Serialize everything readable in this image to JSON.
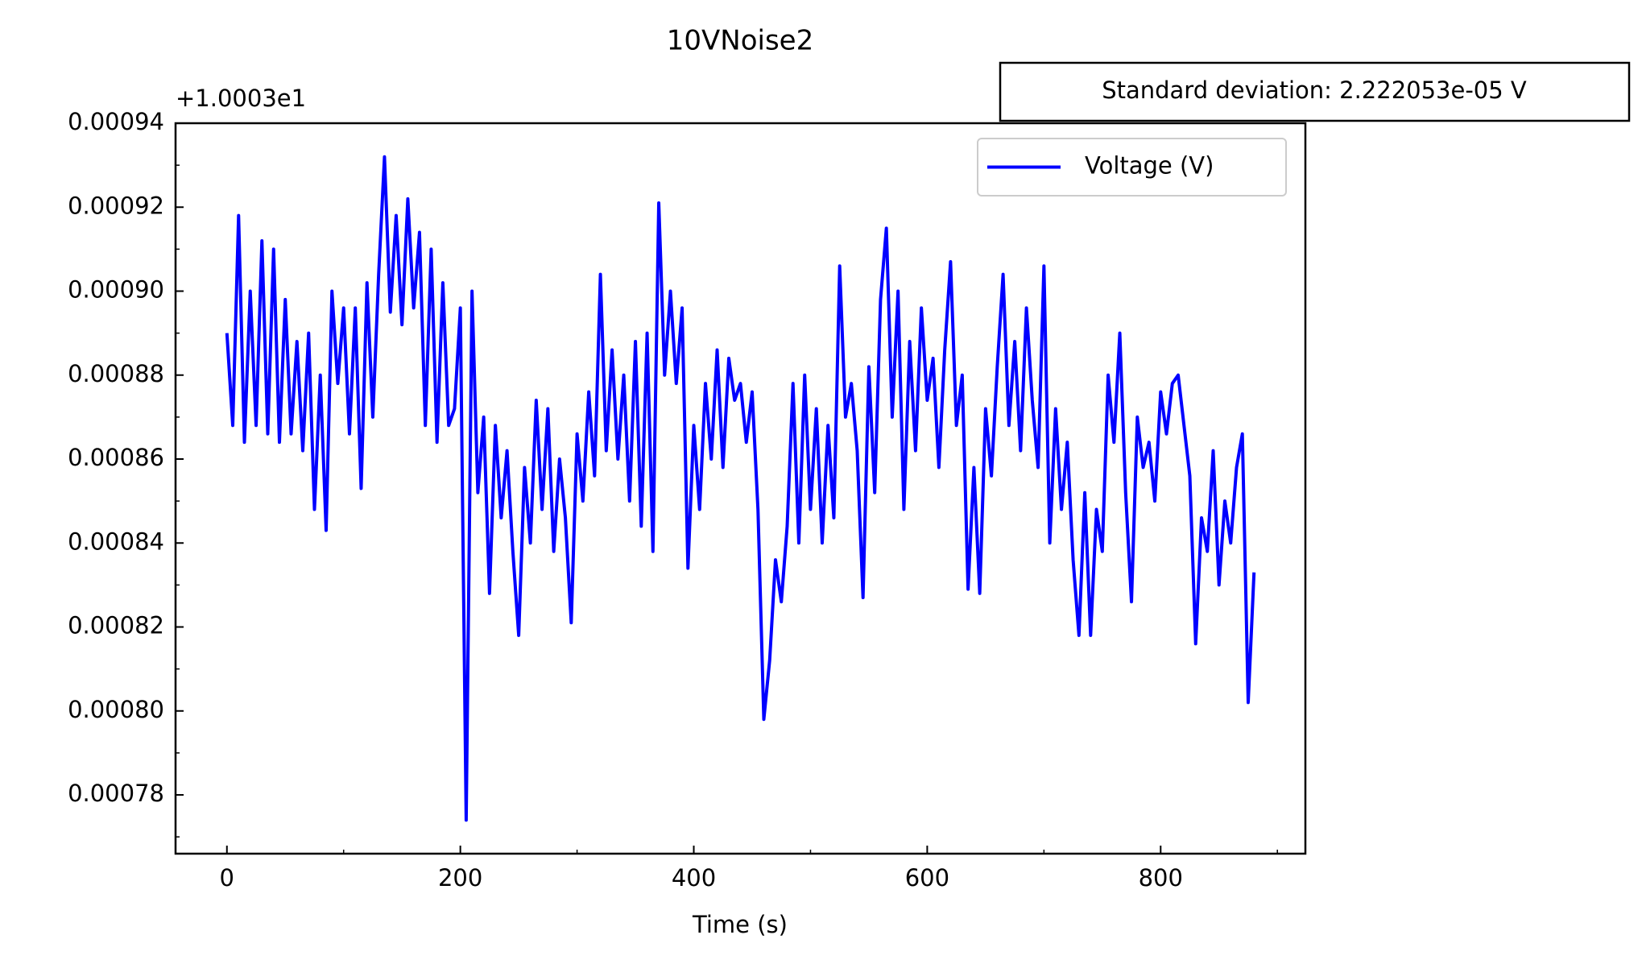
{
  "chart_data": {
    "type": "line",
    "title": "10VNoise2",
    "x_label": "Time (s)",
    "y_offset_label": "+1.0003e1",
    "annotation": "Standard deviation: 2.222053e-05 V",
    "legend": "upper right",
    "grid": false,
    "x": [
      0,
      5,
      10,
      15,
      20,
      25,
      30,
      35,
      40,
      45,
      50,
      55,
      60,
      65,
      70,
      75,
      80,
      85,
      90,
      95,
      100,
      105,
      110,
      115,
      120,
      125,
      130,
      135,
      140,
      145,
      150,
      155,
      160,
      165,
      170,
      175,
      180,
      185,
      190,
      195,
      200,
      205,
      210,
      215,
      220,
      225,
      230,
      235,
      240,
      245,
      250,
      255,
      260,
      265,
      270,
      275,
      280,
      285,
      290,
      295,
      300,
      305,
      310,
      315,
      320,
      325,
      330,
      335,
      340,
      345,
      350,
      355,
      360,
      365,
      370,
      375,
      380,
      385,
      390,
      395,
      400,
      405,
      410,
      415,
      420,
      425,
      430,
      435,
      440,
      445,
      450,
      455,
      460,
      465,
      470,
      475,
      480,
      485,
      490,
      495,
      500,
      505,
      510,
      515,
      520,
      525,
      530,
      535,
      540,
      545,
      550,
      555,
      560,
      565,
      570,
      575,
      580,
      585,
      590,
      595,
      600,
      605,
      610,
      615,
      620,
      625,
      630,
      635,
      640,
      645,
      650,
      655,
      660,
      665,
      670,
      675,
      680,
      685,
      690,
      695,
      700,
      705,
      710,
      715,
      720,
      725,
      730,
      735,
      740,
      745,
      750,
      755,
      760,
      765,
      770,
      775,
      780,
      785,
      790,
      795,
      800,
      805,
      810,
      815,
      820,
      825,
      830,
      835,
      840,
      845,
      850,
      855,
      860,
      865,
      870,
      875,
      880
    ],
    "series": [
      {
        "name": "Voltage (V)",
        "color": "#0000ff",
        "values": [
          0.00089,
          0.000868,
          0.000918,
          0.000864,
          0.0009,
          0.000868,
          0.000912,
          0.000866,
          0.00091,
          0.000864,
          0.000898,
          0.000866,
          0.000888,
          0.000862,
          0.00089,
          0.000848,
          0.00088,
          0.000843,
          0.0009,
          0.000878,
          0.000896,
          0.000866,
          0.000896,
          0.000853,
          0.000902,
          0.00087,
          0.000904,
          0.000932,
          0.000895,
          0.000918,
          0.000892,
          0.000922,
          0.000896,
          0.000914,
          0.000868,
          0.00091,
          0.000864,
          0.000902,
          0.000868,
          0.000872,
          0.000896,
          0.000774,
          0.0009,
          0.000852,
          0.00087,
          0.000828,
          0.000868,
          0.000846,
          0.000862,
          0.000838,
          0.000818,
          0.000858,
          0.00084,
          0.000874,
          0.000848,
          0.000872,
          0.000838,
          0.00086,
          0.000846,
          0.000821,
          0.000866,
          0.00085,
          0.000876,
          0.000856,
          0.000904,
          0.000862,
          0.000886,
          0.00086,
          0.00088,
          0.00085,
          0.000888,
          0.000844,
          0.00089,
          0.000838,
          0.000921,
          0.00088,
          0.0009,
          0.000878,
          0.000896,
          0.000834,
          0.000868,
          0.000848,
          0.000878,
          0.00086,
          0.000886,
          0.000858,
          0.000884,
          0.000874,
          0.000878,
          0.000864,
          0.000876,
          0.000848,
          0.000798,
          0.000812,
          0.000836,
          0.000826,
          0.000844,
          0.000878,
          0.00084,
          0.00088,
          0.000848,
          0.000872,
          0.00084,
          0.000868,
          0.000846,
          0.000906,
          0.00087,
          0.000878,
          0.000862,
          0.000827,
          0.000882,
          0.000852,
          0.000898,
          0.000915,
          0.00087,
          0.0009,
          0.000848,
          0.000888,
          0.000862,
          0.000896,
          0.000874,
          0.000884,
          0.000858,
          0.000886,
          0.000907,
          0.000868,
          0.00088,
          0.000829,
          0.000858,
          0.000828,
          0.000872,
          0.000856,
          0.000882,
          0.000904,
          0.000868,
          0.000888,
          0.000862,
          0.000896,
          0.000874,
          0.000858,
          0.000906,
          0.00084,
          0.000872,
          0.000848,
          0.000864,
          0.000836,
          0.000818,
          0.000852,
          0.000818,
          0.000848,
          0.000838,
          0.00088,
          0.000864,
          0.00089,
          0.000852,
          0.000826,
          0.00087,
          0.000858,
          0.000864,
          0.00085,
          0.000876,
          0.000866,
          0.000878,
          0.00088,
          0.000868,
          0.000856,
          0.000816,
          0.000846,
          0.000838,
          0.000862,
          0.00083,
          0.00085,
          0.00084,
          0.000858,
          0.000866,
          0.000802,
          0.000833
        ]
      }
    ],
    "xlim": [
      -44,
      924
    ],
    "xticks": [
      0,
      200,
      400,
      600,
      800
    ],
    "xminorticks": [
      100,
      300,
      500,
      700,
      900
    ],
    "ylim": [
      0.000766,
      0.00094
    ],
    "yticks": [
      0.00078,
      {
        "value": 0.0008,
        "label": "0.00080"
      },
      0.00082,
      0.00084,
      0.00086,
      0.00088,
      {
        "value": 0.0009,
        "label": "0.00090"
      },
      0.00092,
      0.00094
    ],
    "yminorticks": [
      0.00077,
      0.00079,
      0.00081,
      0.00083,
      0.00085,
      0.00087,
      0.00089,
      0.00091,
      0.00093
    ]
  }
}
